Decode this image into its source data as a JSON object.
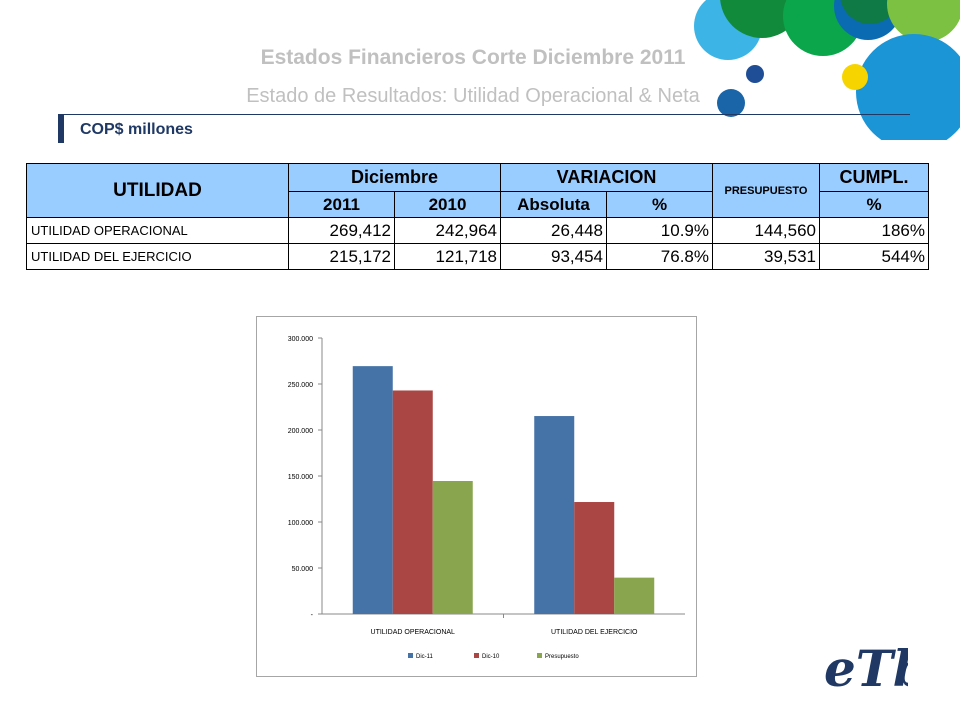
{
  "header": {
    "title": "Estados Financieros Corte Diciembre 2011",
    "subtitle": "Estado de Resultados: Utilidad Operacional & Neta",
    "units": "COP$ millones"
  },
  "table": {
    "col_utilidad": "UTILIDAD",
    "col_diciembre": "Diciembre",
    "col_variacion": "VARIACION",
    "col_presupuesto": "PRESUPUESTO",
    "col_cumpl": "CUMPL.",
    "sub_2011": "2011",
    "sub_2010": "2010",
    "sub_absoluta": "Absoluta",
    "sub_pct": "%",
    "sub_cumpl_pct": "%",
    "rows": [
      {
        "label": "UTILIDAD OPERACIONAL",
        "y2011": "269,412",
        "y2010": "242,964",
        "abs": "26,448",
        "pct": "10.9%",
        "pres": "144,560",
        "cumpl": "186%"
      },
      {
        "label": "UTILIDAD DEL EJERCICIO",
        "y2011": "215,172",
        "y2010": "121,718",
        "abs": "93,454",
        "pct": "76.8%",
        "pres": "39,531",
        "cumpl": "544%"
      }
    ]
  },
  "chart_data": {
    "type": "bar",
    "categories": [
      "UTILIDAD OPERACIONAL",
      "UTILIDAD DEL EJERCICIO"
    ],
    "series": [
      {
        "name": "Dic-11",
        "color": "#4572a7",
        "values": [
          269412,
          215172
        ]
      },
      {
        "name": "Dic-10",
        "color": "#aa4643",
        "values": [
          242964,
          121718
        ]
      },
      {
        "name": "Presupuesto",
        "color": "#89a54e",
        "values": [
          144560,
          39531
        ]
      }
    ],
    "ylim": [
      0,
      300000
    ],
    "yticks": [
      0,
      50000,
      100000,
      150000,
      200000,
      250000,
      300000
    ],
    "ytick_labels": [
      "-",
      "50.000",
      "100.000",
      "150.000",
      "200.000",
      "250.000",
      "300.000"
    ],
    "legend": "bottom",
    "grid": false
  },
  "logo": {
    "text": "eTb"
  }
}
